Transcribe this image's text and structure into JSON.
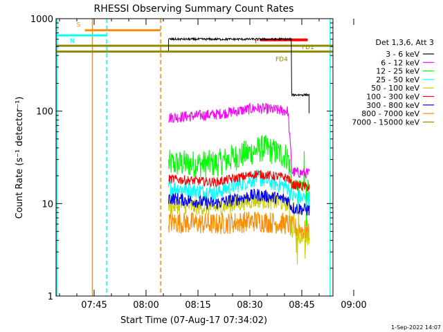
{
  "chart_data": {
    "type": "line",
    "title": "RHESSI Observing Summary Count Rates",
    "xlabel": "Start Time (07-Aug-17 07:34:02)",
    "ylabel": "Count Rate (s⁻¹ detector⁻¹)",
    "yscale": "log",
    "ylim": [
      1,
      1000
    ],
    "xlim_minutes": [
      34.0,
      114.0
    ],
    "y_ticks": [
      "1",
      "10",
      "100",
      "1000"
    ],
    "x_ticks": [
      {
        "minute": 45,
        "label": "07:45"
      },
      {
        "minute": 60,
        "label": "08:00"
      },
      {
        "minute": 75,
        "label": "08:15"
      },
      {
        "minute": 90,
        "label": "08:30"
      },
      {
        "minute": 105,
        "label": "08:45"
      },
      {
        "minute": 120,
        "label": "09:00"
      }
    ],
    "legend_title": "Det 1,3,6, Att 3",
    "legend_position": "right",
    "data_window_minutes": [
      66.5,
      107.2
    ],
    "flare_tail_end_minute": 102.0,
    "series": [
      {
        "name": "3 - 6 keV",
        "color": "#000000",
        "levels": [
          [
            66.5,
            600
          ],
          [
            102.0,
            600
          ],
          [
            102.1,
            150
          ],
          [
            107.2,
            150
          ]
        ]
      },
      {
        "name": "6 - 12 keV",
        "color": "#ff00ff",
        "levels": [
          [
            66.5,
            85
          ],
          [
            80,
            92
          ],
          [
            92,
            108
          ],
          [
            101,
            100
          ],
          [
            102.2,
            22
          ],
          [
            107.2,
            21
          ]
        ]
      },
      {
        "name": "12 - 25 keV",
        "color": "#00ff00",
        "levels": [
          [
            66.5,
            27
          ],
          [
            80,
            27
          ],
          [
            94,
            40
          ],
          [
            101,
            32
          ],
          [
            102.2,
            16
          ],
          [
            107.2,
            15
          ]
        ]
      },
      {
        "name": "25 - 50 keV",
        "color": "#00ffff",
        "levels": [
          [
            66.5,
            15
          ],
          [
            80,
            13
          ],
          [
            92,
            19
          ],
          [
            101,
            15
          ],
          [
            102.2,
            12
          ],
          [
            107.2,
            11
          ]
        ]
      },
      {
        "name": "50 - 100 keV",
        "color": "#cccc00",
        "levels": [
          [
            66.5,
            9.5
          ],
          [
            80,
            9
          ],
          [
            92,
            11
          ],
          [
            101,
            10
          ],
          [
            102.2,
            5
          ],
          [
            107.2,
            4
          ]
        ]
      },
      {
        "name": "100 - 300 keV",
        "color": "#ff0000",
        "levels": [
          [
            66.5,
            18.5
          ],
          [
            80,
            17
          ],
          [
            92,
            21
          ],
          [
            101,
            19
          ],
          [
            102.2,
            16
          ],
          [
            107.2,
            15
          ]
        ]
      },
      {
        "name": "300 - 800 keV",
        "color": "#0000ff",
        "levels": [
          [
            66.5,
            11.5
          ],
          [
            80,
            10
          ],
          [
            92,
            12.5
          ],
          [
            101,
            11
          ],
          [
            102.2,
            9
          ],
          [
            107.2,
            8.5
          ]
        ]
      },
      {
        "name": "800 - 7000 keV",
        "color": "#ff8c00",
        "levels": [
          [
            66.5,
            6.3
          ],
          [
            80,
            6
          ],
          [
            92,
            6.5
          ],
          [
            101,
            6
          ],
          [
            102.2,
            5.5
          ],
          [
            107.2,
            5
          ]
        ]
      },
      {
        "name": "7000 - 15000 keV",
        "color": "#8c8c00",
        "levels": []
      }
    ],
    "annotations": [
      {
        "label": "S",
        "color": "#ff8c00",
        "x_range": [
          42.3,
          64.2
        ],
        "y": 750
      },
      {
        "label": "N",
        "color": "#00ffff",
        "x_range": [
          34.0,
          48.6
        ],
        "y": 660
      },
      {
        "label": "",
        "color": "#00ffff",
        "x_range": [
          115.8,
          127.0
        ],
        "y": 660
      },
      {
        "label": "F",
        "color": "#ff0000",
        "x_range": [
          93.0,
          106.7
        ],
        "y": 590
      },
      {
        "label": "FD1",
        "color": "#8c8c00",
        "x_range": [
          34.0,
          127.0
        ],
        "y": 510
      },
      {
        "label": "FD4",
        "color": "#8c8c00",
        "x_range": [
          34.0,
          127.0
        ],
        "y": 440
      }
    ],
    "vertical_markers": [
      {
        "minute": 34.2,
        "color": "#00ffff",
        "style": "solid"
      },
      {
        "minute": 44.5,
        "color": "#ff8c00",
        "style": "solid"
      },
      {
        "minute": 48.6,
        "color": "#00ffff",
        "style": "dashed"
      },
      {
        "minute": 64.2,
        "color": "#ff8c00",
        "style": "dashed"
      },
      {
        "minute": 113.2,
        "color": "#00ffff",
        "style": "solid"
      },
      {
        "minute": 126.6,
        "color": "#00ffff",
        "style": "dashed"
      }
    ]
  },
  "footer": {
    "timestamp": "1-Sep-2022 14:07"
  }
}
